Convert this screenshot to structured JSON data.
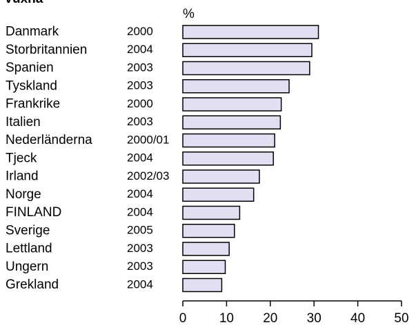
{
  "chart_data": {
    "type": "bar",
    "orientation": "horizontal",
    "title": "Vuxna",
    "unit_label": "%",
    "categories": [
      "Danmark",
      "Storbritannien",
      "Spanien",
      "Tyskland",
      "Frankrike",
      "Italien",
      "Nederländerna",
      "Tjeck",
      "Irland",
      "Norge",
      "FINLAND",
      "Sverige",
      "Lettland",
      "Ungern",
      "Grekland"
    ],
    "years": [
      "2000",
      "2004",
      "2003",
      "2003",
      "2000",
      "2003",
      "2000/01",
      "2004",
      "2002/03",
      "2004",
      "2004",
      "2005",
      "2003",
      "2003",
      "2004"
    ],
    "values": [
      31,
      29.5,
      29,
      24.3,
      22.5,
      22.3,
      21,
      20.7,
      17.5,
      16.2,
      13,
      11.8,
      10.6,
      9.7,
      8.9
    ],
    "xlim": [
      0,
      50
    ],
    "xticks": [
      "0",
      "10",
      "20",
      "30",
      "40",
      "50"
    ],
    "grid": false,
    "colors": {
      "bar_fill": "#e0e0f2",
      "bar_stroke": "#000000",
      "axis": "#000000"
    }
  }
}
